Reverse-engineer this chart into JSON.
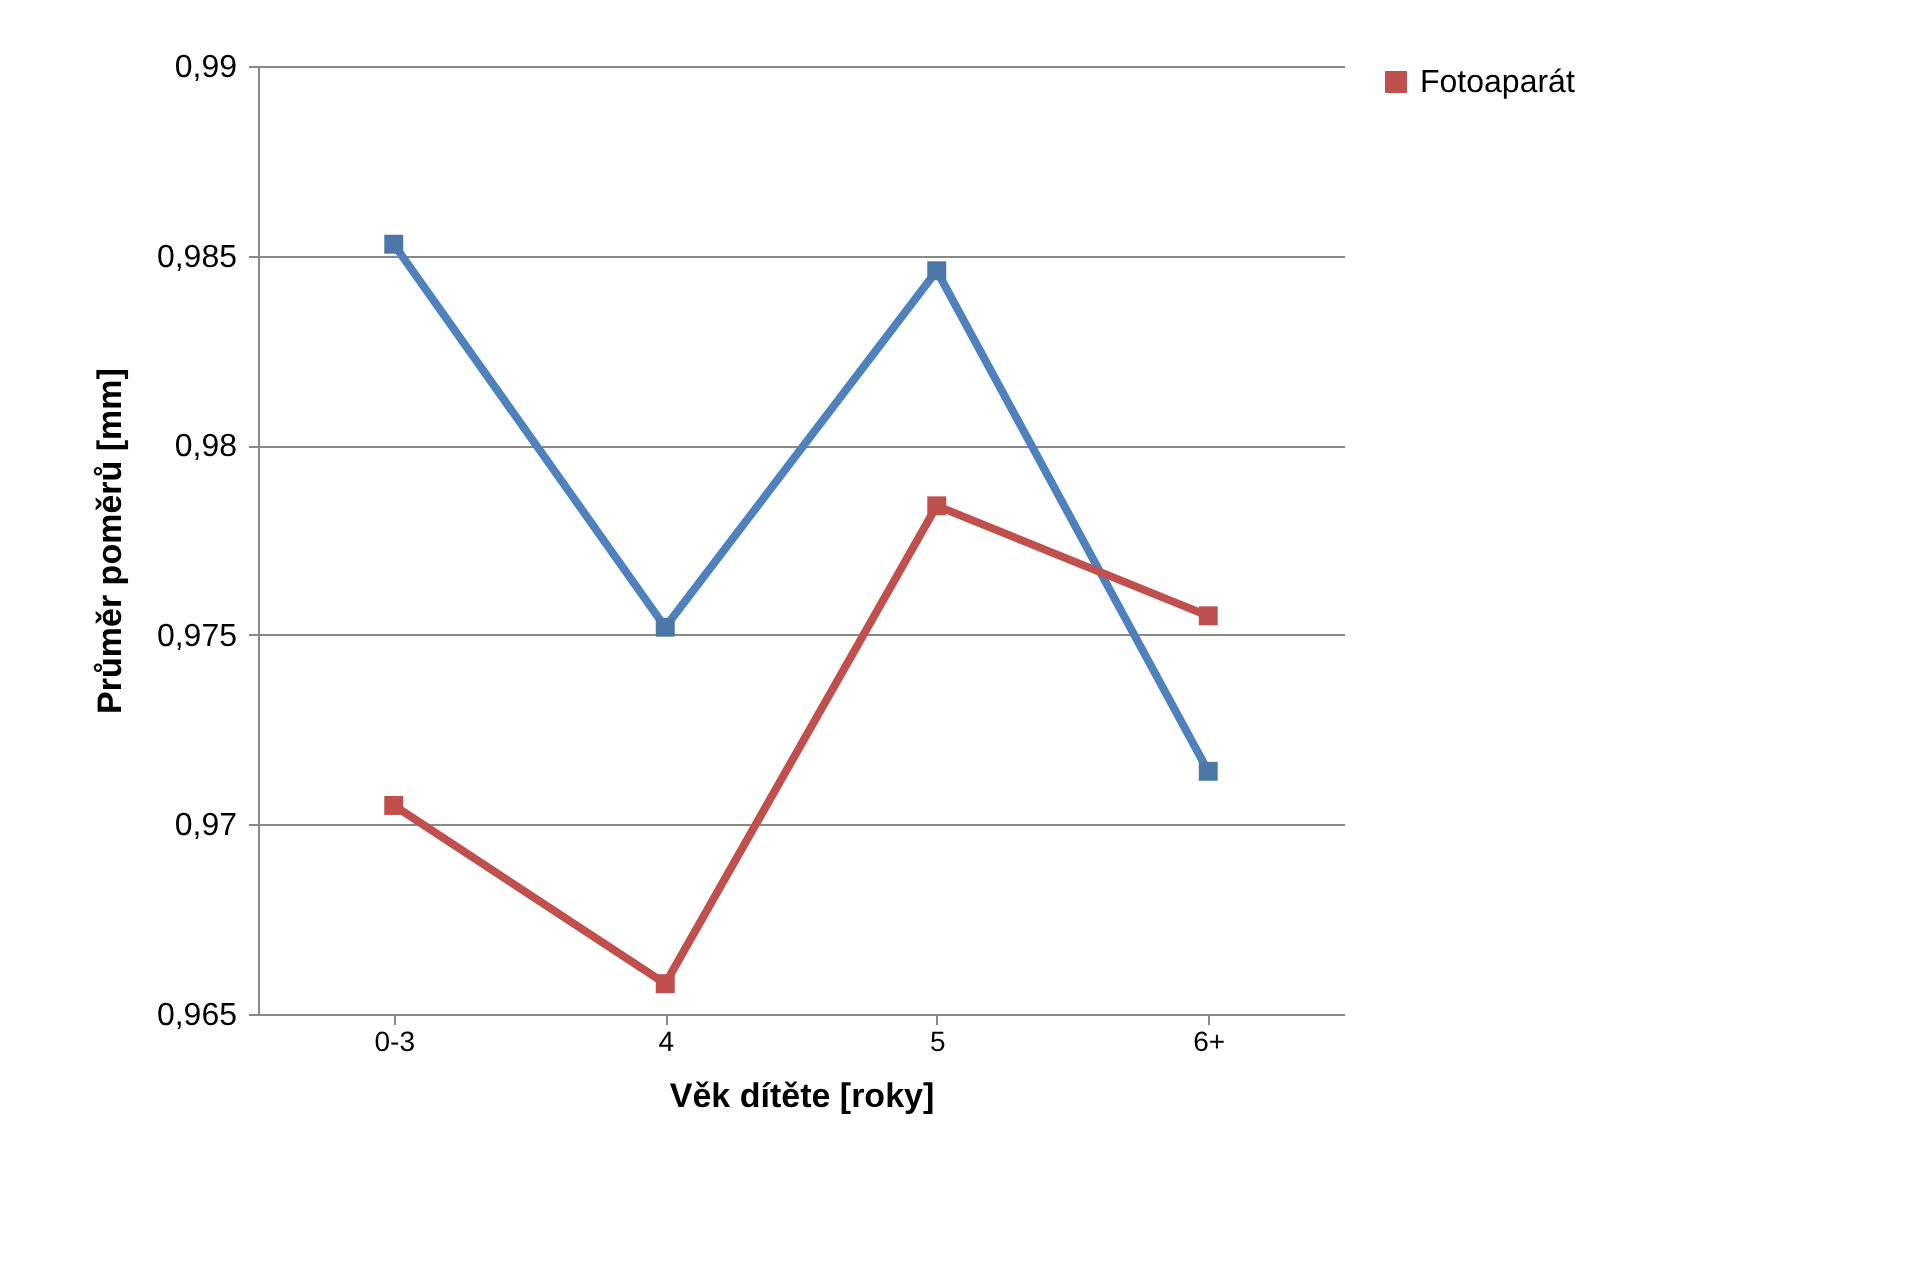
{
  "chart_data": {
    "type": "line",
    "xlabel": "Věk dítěte [roky]",
    "ylabel": "Průměr poměrů [mm]",
    "categories": [
      "0-3",
      "4",
      "5",
      "6+"
    ],
    "series": [
      {
        "color": "#4f81bd",
        "values": [
          0.9853,
          0.9752,
          0.9846,
          0.9714
        ]
      },
      {
        "name": "Fotoaparát",
        "color": "#c0504d",
        "values": [
          0.9705,
          0.9658,
          0.9784,
          0.9755
        ]
      }
    ],
    "ylim": [
      0.965,
      0.99
    ],
    "yticks": [
      {
        "value": 0.965,
        "label": "0,965"
      },
      {
        "value": 0.97,
        "label": "0,97"
      },
      {
        "value": 0.975,
        "label": "0,975"
      },
      {
        "value": 0.98,
        "label": "0,98"
      },
      {
        "value": 0.985,
        "label": "0,985"
      },
      {
        "value": 0.99,
        "label": "0,99"
      }
    ],
    "grid": "y",
    "legend": "right",
    "marker": "square",
    "line_style": "solid"
  }
}
